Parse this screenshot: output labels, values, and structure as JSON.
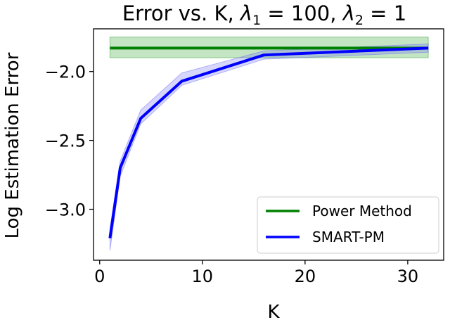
{
  "chart_data": {
    "type": "line",
    "title": {
      "prefix": "Error vs. K, ",
      "sym1": "λ",
      "sub1": "1",
      "eq1": " = 100, ",
      "sym2": "λ",
      "sub2": "2",
      "eq2": " = 1"
    },
    "xlabel": "K",
    "ylabel": "Log Estimation Error",
    "xlim": [
      -0.6,
      33.5
    ],
    "ylim": [
      -3.37,
      -1.69
    ],
    "xticks": [
      0,
      10,
      20,
      30
    ],
    "xtick_labels": [
      "0",
      "10",
      "20",
      "30"
    ],
    "yticks": [
      -3.0,
      -2.5,
      -2.0
    ],
    "ytick_labels": [
      "−3.0",
      "−2.5",
      "−2.0"
    ],
    "grid": false,
    "legend_position": "lower-right",
    "series": [
      {
        "name": "Power Method",
        "color": "#008000",
        "band_color": "#2ca02c",
        "x": [
          1,
          32
        ],
        "y": [
          -1.83,
          -1.83
        ],
        "y_lower": [
          -1.9,
          -1.9
        ],
        "y_upper": [
          -1.75,
          -1.75
        ]
      },
      {
        "name": "SMART-PM",
        "color": "#0000ff",
        "band_color": "#6f6ff5",
        "x": [
          1,
          2,
          4,
          8,
          16,
          32
        ],
        "y": [
          -3.21,
          -2.7,
          -2.34,
          -2.07,
          -1.88,
          -1.83
        ],
        "y_lower": [
          -3.3,
          -2.76,
          -2.38,
          -2.1,
          -1.91,
          -1.86
        ],
        "y_upper": [
          -3.14,
          -2.65,
          -2.28,
          -2.01,
          -1.85,
          -1.8
        ]
      }
    ]
  }
}
